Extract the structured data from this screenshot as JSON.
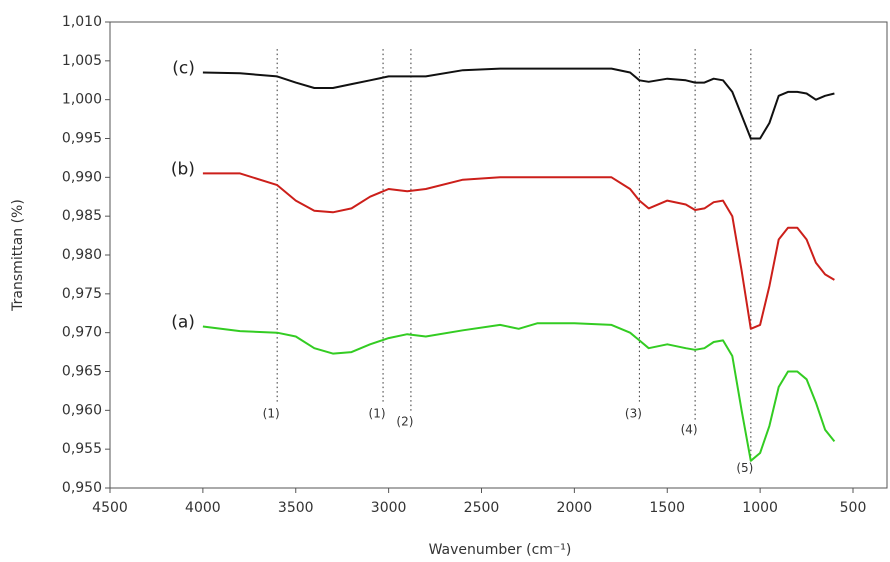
{
  "chart_data": {
    "type": "line",
    "xlabel": "Wavenumber (cm⁻¹)",
    "ylabel": "Transmittan (%)",
    "xlim": [
      4500,
      317
    ],
    "xticks": [
      4500,
      4000,
      3500,
      3000,
      2500,
      2000,
      1500,
      1000,
      500
    ],
    "ylim": [
      0.95,
      1.01
    ],
    "yticks": [
      {
        "value": 0.95,
        "label": "0,950"
      },
      {
        "value": 0.955,
        "label": "0,955"
      },
      {
        "value": 0.96,
        "label": "0,960"
      },
      {
        "value": 0.965,
        "label": "0,965"
      },
      {
        "value": 0.97,
        "label": "0,970"
      },
      {
        "value": 0.975,
        "label": "0,975"
      },
      {
        "value": 0.98,
        "label": "0,980"
      },
      {
        "value": 0.985,
        "label": "0,985"
      },
      {
        "value": 0.99,
        "label": "0,990"
      },
      {
        "value": 0.995,
        "label": "0,995"
      },
      {
        "value": 1.0,
        "label": "1,000"
      },
      {
        "value": 1.005,
        "label": "1,005"
      },
      {
        "value": 1.01,
        "label": "1,010"
      }
    ],
    "x": [
      4000,
      3800,
      3600,
      3500,
      3400,
      3300,
      3200,
      3100,
      3000,
      2900,
      2800,
      2600,
      2400,
      2300,
      2200,
      2000,
      1800,
      1700,
      1650,
      1600,
      1500,
      1400,
      1350,
      1300,
      1250,
      1200,
      1150,
      1100,
      1050,
      1000,
      950,
      900,
      850,
      800,
      750,
      700,
      650,
      600
    ],
    "series": [
      {
        "name": "(c)",
        "color": "#111111",
        "values": [
          1.0035,
          1.0034,
          1.003,
          1.0022,
          1.0015,
          1.0015,
          1.002,
          1.0025,
          1.003,
          1.003,
          1.003,
          1.0038,
          1.004,
          1.004,
          1.004,
          1.004,
          1.004,
          1.0035,
          1.0025,
          1.0023,
          1.0027,
          1.0025,
          1.0022,
          1.0022,
          1.0027,
          1.0025,
          1.001,
          0.998,
          0.995,
          0.995,
          0.997,
          1.0005,
          1.001,
          1.001,
          1.0008,
          1.0,
          1.0005,
          1.0008
        ]
      },
      {
        "name": "(b)",
        "color": "#cc1f1a",
        "values": [
          0.9905,
          0.9905,
          0.989,
          0.987,
          0.9857,
          0.9855,
          0.986,
          0.9875,
          0.9885,
          0.9882,
          0.9885,
          0.9897,
          0.99,
          0.99,
          0.99,
          0.99,
          0.99,
          0.9885,
          0.987,
          0.986,
          0.987,
          0.9865,
          0.9858,
          0.986,
          0.9868,
          0.987,
          0.985,
          0.978,
          0.9705,
          0.971,
          0.976,
          0.982,
          0.9835,
          0.9835,
          0.982,
          0.979,
          0.9775,
          0.9768
        ]
      },
      {
        "name": "(a)",
        "color": "#33cc22",
        "values": [
          0.9708,
          0.9702,
          0.97,
          0.9695,
          0.968,
          0.9673,
          0.9675,
          0.9685,
          0.9693,
          0.9698,
          0.9695,
          0.9703,
          0.971,
          0.9705,
          0.9712,
          0.9712,
          0.971,
          0.97,
          0.969,
          0.968,
          0.9685,
          0.968,
          0.9678,
          0.968,
          0.9688,
          0.969,
          0.967,
          0.96,
          0.9535,
          0.9545,
          0.958,
          0.963,
          0.965,
          0.965,
          0.964,
          0.961,
          0.9575,
          0.956
        ]
      }
    ],
    "annotations": [
      {
        "text": "(1)",
        "x": 3600,
        "y": 0.9595
      },
      {
        "text": "(1)",
        "x": 3030,
        "y": 0.9595
      },
      {
        "text": "(2)",
        "x": 2880,
        "y": 0.9585
      },
      {
        "text": "(3)",
        "x": 1650,
        "y": 0.9595
      },
      {
        "text": "(4)",
        "x": 1350,
        "y": 0.9575
      },
      {
        "text": "(5)",
        "x": 1050,
        "y": 0.9525
      }
    ]
  }
}
